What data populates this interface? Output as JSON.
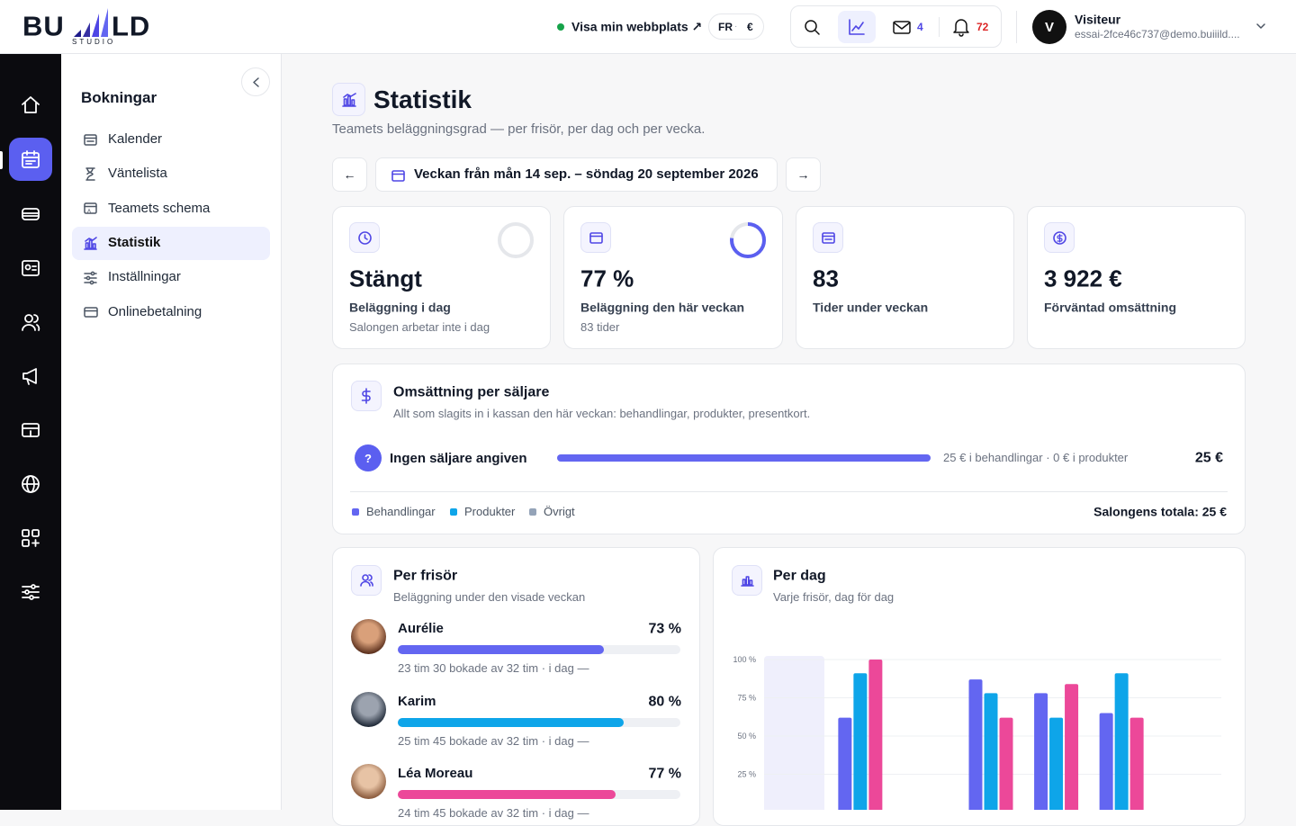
{
  "header": {
    "logo_left": "BU",
    "logo_right": "LD",
    "logo_sub": "STUDIO",
    "site_link": "Visa min webbplats ↗",
    "lang": "FR",
    "currency": "€",
    "mail_count": 4,
    "notification_count": 72,
    "user_initial": "V",
    "user_name": "Visiteur",
    "user_email": "essai-2fce46c737@demo.buiiild...."
  },
  "subnav": {
    "title": "Bokningar",
    "items": [
      "Kalender",
      "Väntelista",
      "Teamets schema",
      "Statistik",
      "Inställningar",
      "Onlinebetalning"
    ]
  },
  "page": {
    "title": "Statistik",
    "subtitle": "Teamets beläggningsgrad — per frisör, per dag och per vecka.",
    "prev": "←",
    "week": "Veckan från mån 14 sep. – söndag 20 september 2026",
    "next": "→"
  },
  "cards": [
    {
      "value": "Stängt",
      "label": "Beläggning i dag",
      "note": "Salongen arbetar inte i dag",
      "ring": 0
    },
    {
      "value": "77 %",
      "label": "Beläggning den här veckan",
      "note": "83 tider",
      "ring": 77
    },
    {
      "value": 83,
      "label": "Tider under veckan"
    },
    {
      "value": "3 922 €",
      "label": "Förväntad omsättning"
    }
  ],
  "revenue": {
    "title": "Omsättning per säljare",
    "subtitle": "Allt som slagits in i kassan den här veckan: behandlingar, produkter, presentkort.",
    "sellers": [
      {
        "initial": "?",
        "name": "Ingen säljare angiven",
        "value": 25,
        "detail": "25 € i behandlingar · 0 € i produkter",
        "total": "25 €"
      }
    ],
    "legend": [
      {
        "name": "Behandlingar",
        "color": "#6366f1"
      },
      {
        "name": "Produkter",
        "color": "#0ea5e9"
      },
      {
        "name": "Övrigt",
        "color": "#94a3b8"
      }
    ],
    "grand_total": "Salongens totala: 25 €"
  },
  "staff": {
    "title": "Per frisör",
    "subtitle": "Beläggning under den visade veckan",
    "members": [
      {
        "name": "Aurélie",
        "value": 73,
        "label": "73 %",
        "detail": "23 tim 30 bokade av 32 tim · i dag —",
        "color": "#6366f1"
      },
      {
        "name": "Karim",
        "value": 80,
        "label": "80 %",
        "detail": "25 tim 45 bokade av 32 tim · i dag —",
        "color": "#0ea5e9"
      },
      {
        "name": "Léa Moreau",
        "value": 77,
        "label": "77 %",
        "detail": "24 tim 45 bokade av 32 tim · i dag —",
        "color": "#ec4899"
      }
    ]
  },
  "per_day": {
    "title": "Per dag",
    "subtitle": "Varje frisör, dag för dag"
  },
  "chart_data": {
    "type": "bar",
    "categories": [
      null,
      null,
      null,
      null,
      null,
      null,
      null
    ],
    "ylim": [
      0,
      100
    ],
    "yticks": [
      {
        "value": 25,
        "label": "25 %"
      },
      {
        "value": 50,
        "label": "50 %"
      },
      {
        "value": 75,
        "label": "75 %"
      },
      {
        "value": 100,
        "label": "100 %"
      }
    ],
    "grid": true,
    "series": [
      {
        "color": "#6366f1",
        "values": [
          null,
          62,
          null,
          87,
          78,
          65,
          null
        ]
      },
      {
        "color": "#0ea5e9",
        "values": [
          null,
          91,
          null,
          78,
          62,
          91,
          null
        ]
      },
      {
        "color": "#ec4899",
        "values": [
          null,
          100,
          null,
          62,
          84,
          62,
          null
        ]
      }
    ]
  }
}
